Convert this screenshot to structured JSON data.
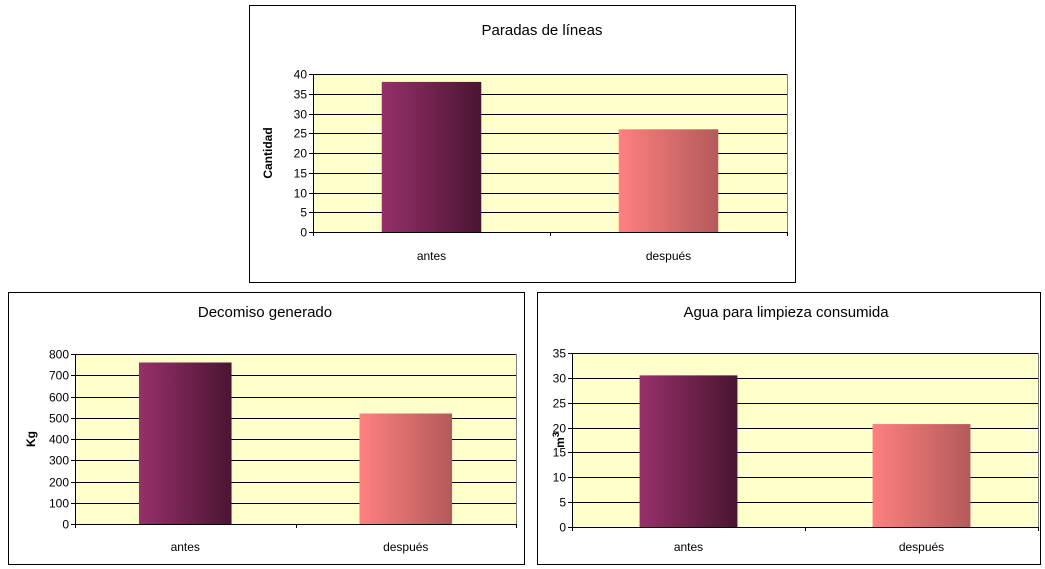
{
  "colors": {
    "plot_background": "#ffffcc",
    "gridline": "#000000",
    "bar_antes": [
      "#96306a",
      "#4a1531"
    ],
    "bar_despues": [
      "#ff8080",
      "#b35a5a"
    ]
  },
  "chart_data": [
    {
      "type": "bar",
      "title": "Paradas de líneas",
      "xlabel": "",
      "ylabel": "Cantidad",
      "ylabel_superscript": "",
      "categories": [
        "antes",
        "después"
      ],
      "values": [
        38,
        26
      ],
      "ylim": [
        0,
        40
      ],
      "yticks": [
        0,
        5,
        10,
        15,
        20,
        25,
        30,
        35,
        40
      ],
      "grid": true,
      "legend": "none"
    },
    {
      "type": "bar",
      "title": "Decomiso generado",
      "xlabel": "",
      "ylabel": "Kg",
      "ylabel_superscript": "",
      "categories": [
        "antes",
        "después"
      ],
      "values": [
        760,
        520
      ],
      "ylim": [
        0,
        800
      ],
      "yticks": [
        0,
        100,
        200,
        300,
        400,
        500,
        600,
        700,
        800
      ],
      "grid": true,
      "legend": "none"
    },
    {
      "type": "bar",
      "title": "Agua para limpieza consumida",
      "xlabel": "",
      "ylabel": "m",
      "ylabel_superscript": "3",
      "categories": [
        "antes",
        "después"
      ],
      "values": [
        30.5,
        20.7
      ],
      "ylim": [
        0,
        35
      ],
      "yticks": [
        0,
        5,
        10,
        15,
        20,
        25,
        30,
        35
      ],
      "grid": true,
      "legend": "none"
    }
  ]
}
